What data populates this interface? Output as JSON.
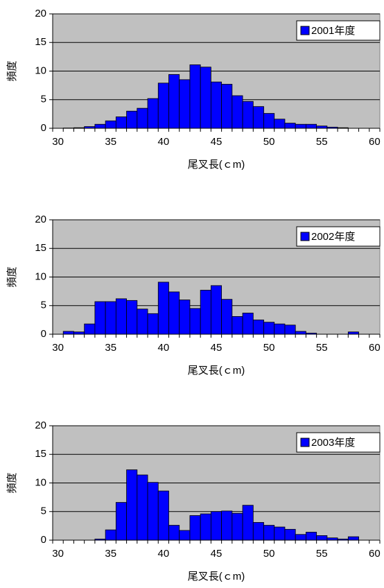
{
  "chart_data": [
    {
      "type": "bar",
      "xlabel": "尾叉長(ｃm)",
      "ylabel": "頻度",
      "legend": "upper right",
      "grid": true,
      "categories": [
        30,
        null,
        null,
        null,
        null,
        35,
        null,
        null,
        null,
        null,
        40,
        null,
        null,
        null,
        null,
        45,
        null,
        null,
        null,
        null,
        50,
        null,
        null,
        null,
        null,
        55,
        null,
        null,
        null,
        null,
        60
      ],
      "series": [
        {
          "name": "2001年度",
          "color": "#0000ff",
          "values": [
            0,
            0.05,
            0.1,
            0.3,
            0.7,
            1.3,
            2.0,
            3.0,
            3.5,
            5.2,
            7.9,
            9.4,
            8.5,
            11.1,
            10.7,
            8.1,
            7.7,
            5.7,
            4.7,
            3.8,
            2.6,
            1.6,
            0.9,
            0.7,
            0.7,
            0.4,
            0.2,
            0.1,
            0,
            0,
            0
          ]
        }
      ],
      "ylim": [
        0,
        20
      ],
      "yticks": [
        0,
        5,
        10,
        15,
        20
      ]
    },
    {
      "type": "bar",
      "xlabel": "尾叉長(ｃm)",
      "ylabel": "頻度",
      "legend": "upper right",
      "grid": true,
      "categories": [
        30,
        null,
        null,
        null,
        null,
        35,
        null,
        null,
        null,
        null,
        40,
        null,
        null,
        null,
        null,
        45,
        null,
        null,
        null,
        null,
        50,
        null,
        null,
        null,
        null,
        55,
        null,
        null,
        null,
        null,
        60
      ],
      "series": [
        {
          "name": "2002年度",
          "color": "#0000ff",
          "values": [
            0,
            0.5,
            0.4,
            1.8,
            5.7,
            5.7,
            6.2,
            5.9,
            4.4,
            3.6,
            9.1,
            7.4,
            6.0,
            4.5,
            7.7,
            8.5,
            6.1,
            3.1,
            3.7,
            2.5,
            2.1,
            1.8,
            1.6,
            0.5,
            0.2,
            0,
            0,
            0,
            0.4,
            0,
            0
          ]
        }
      ],
      "ylim": [
        0,
        20
      ],
      "yticks": [
        0,
        5,
        10,
        15,
        20
      ]
    },
    {
      "type": "bar",
      "xlabel": "尾叉長(ｃm)",
      "ylabel": "頻度",
      "legend": "upper right",
      "grid": true,
      "categories": [
        30,
        null,
        null,
        null,
        null,
        35,
        null,
        null,
        null,
        null,
        40,
        null,
        null,
        null,
        null,
        45,
        null,
        null,
        null,
        null,
        50,
        null,
        null,
        null,
        null,
        55,
        null,
        null,
        null,
        null,
        60
      ],
      "series": [
        {
          "name": "2003年度",
          "color": "#0000ff",
          "values": [
            0,
            0,
            0,
            0,
            0.2,
            1.8,
            6.6,
            12.3,
            11.4,
            10.1,
            8.6,
            2.6,
            1.7,
            4.3,
            4.6,
            5.0,
            5.1,
            4.7,
            6.1,
            3.1,
            2.6,
            2.3,
            1.9,
            1.0,
            1.4,
            0.8,
            0.4,
            0.2,
            0.6,
            0,
            0
          ]
        }
      ],
      "ylim": [
        0,
        20
      ],
      "yticks": [
        0,
        5,
        10,
        15,
        20
      ]
    }
  ]
}
